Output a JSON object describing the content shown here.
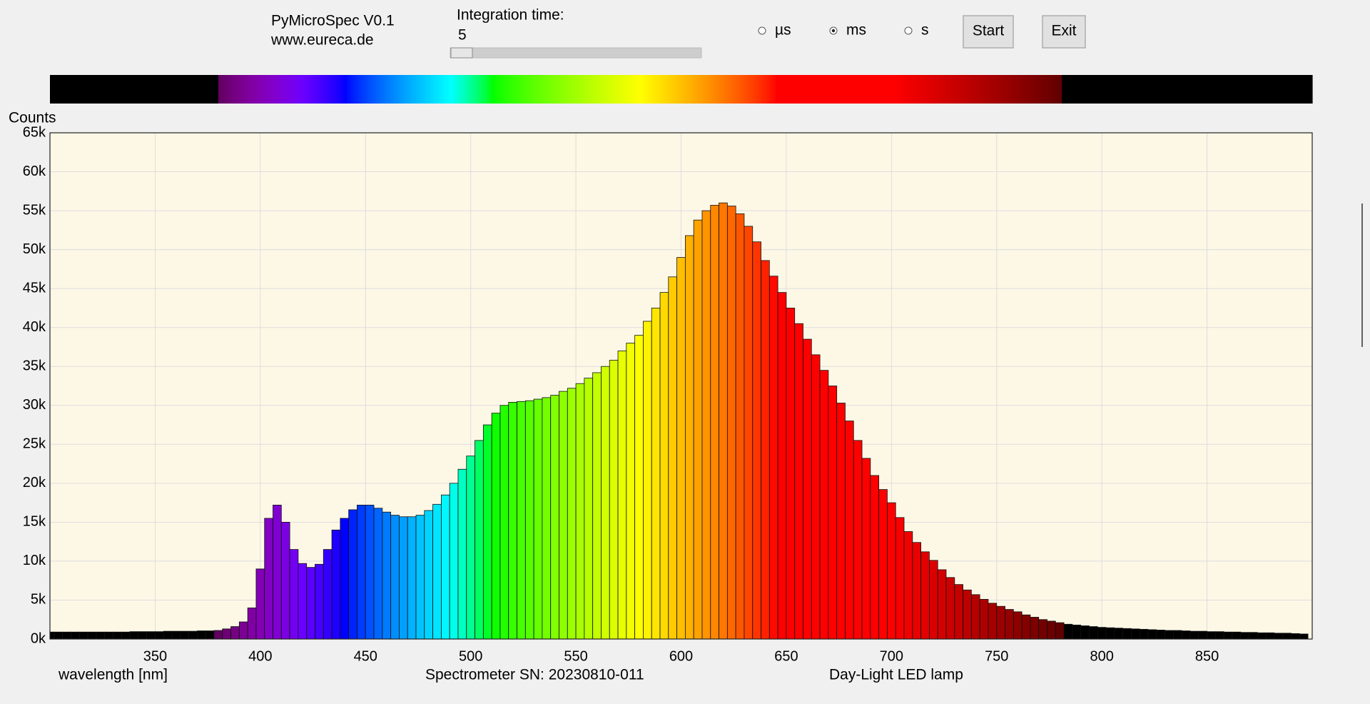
{
  "app": {
    "name": "PyMicroSpec V0.1",
    "website": "www.eureca.de"
  },
  "controls": {
    "integration_label": "Integration time:",
    "integration_value": "5",
    "units": [
      "µs",
      "ms",
      "s"
    ],
    "selected_unit": "ms",
    "start": "Start",
    "exit": "Exit"
  },
  "chart_data": {
    "type": "bar",
    "ylabel": "Counts",
    "xlabel": "wavelength [nm]",
    "annotations": [
      "Spectrometer SN: 20230810-011",
      "Day-Light LED lamp"
    ],
    "xlim": [
      300,
      900
    ],
    "xticks": [
      350,
      400,
      450,
      500,
      550,
      600,
      650,
      700,
      750,
      800,
      850
    ],
    "ylim": [
      0,
      65000
    ],
    "yticks": [
      {
        "value": 0,
        "label": "0k"
      },
      {
        "value": 5000,
        "label": "5k"
      },
      {
        "value": 10000,
        "label": "10k"
      },
      {
        "value": 15000,
        "label": "15k"
      },
      {
        "value": 20000,
        "label": "20k"
      },
      {
        "value": 25000,
        "label": "25k"
      },
      {
        "value": 30000,
        "label": "30k"
      },
      {
        "value": 35000,
        "label": "35k"
      },
      {
        "value": 40000,
        "label": "40k"
      },
      {
        "value": 45000,
        "label": "45k"
      },
      {
        "value": 50000,
        "label": "50k"
      },
      {
        "value": 55000,
        "label": "55k"
      },
      {
        "value": 60000,
        "label": "60k"
      },
      {
        "value": 65000,
        "label": "65k"
      }
    ],
    "grid": true,
    "color": "wavelength",
    "x": [
      300,
      304,
      308,
      312,
      316,
      320,
      324,
      328,
      332,
      336,
      340,
      344,
      348,
      352,
      356,
      360,
      364,
      368,
      372,
      376,
      380,
      384,
      388,
      392,
      396,
      400,
      404,
      408,
      412,
      416,
      420,
      424,
      428,
      432,
      436,
      440,
      444,
      448,
      452,
      456,
      460,
      464,
      468,
      472,
      476,
      480,
      484,
      488,
      492,
      496,
      500,
      504,
      508,
      512,
      516,
      520,
      524,
      528,
      532,
      536,
      540,
      544,
      548,
      552,
      556,
      560,
      564,
      568,
      572,
      576,
      580,
      584,
      588,
      592,
      596,
      600,
      604,
      608,
      612,
      616,
      620,
      624,
      628,
      632,
      636,
      640,
      644,
      648,
      652,
      656,
      660,
      664,
      668,
      672,
      676,
      680,
      684,
      688,
      692,
      696,
      700,
      704,
      708,
      712,
      716,
      720,
      724,
      728,
      732,
      736,
      740,
      744,
      748,
      752,
      756,
      760,
      764,
      768,
      772,
      776,
      780,
      784,
      788,
      792,
      796,
      800,
      804,
      808,
      812,
      816,
      820,
      824,
      828,
      832,
      836,
      840,
      844,
      848,
      852,
      856,
      860,
      864,
      868,
      872,
      876,
      880,
      884,
      888,
      892,
      896
    ],
    "values": [
      900,
      900,
      900,
      900,
      900,
      900,
      900,
      900,
      900,
      900,
      950,
      950,
      950,
      950,
      1000,
      1000,
      1000,
      1000,
      1050,
      1050,
      1100,
      1300,
      1600,
      2200,
      4000,
      9000,
      15500,
      17200,
      15000,
      11500,
      9700,
      9200,
      9600,
      11500,
      14000,
      15500,
      16600,
      17200,
      17200,
      16800,
      16300,
      15900,
      15700,
      15700,
      15900,
      16500,
      17300,
      18500,
      20000,
      21800,
      23500,
      25500,
      27500,
      29000,
      30000,
      30400,
      30500,
      30600,
      30800,
      31000,
      31300,
      31800,
      32200,
      32800,
      33500,
      34200,
      35000,
      35800,
      37000,
      38000,
      39000,
      40800,
      42500,
      44500,
      46500,
      49000,
      51800,
      53800,
      55000,
      55700,
      56000,
      55600,
      54600,
      53000,
      51000,
      48600,
      46600,
      44500,
      42500,
      40500,
      38500,
      36500,
      34500,
      32500,
      30300,
      28000,
      25500,
      23200,
      21000,
      19200,
      17500,
      15600,
      13800,
      12400,
      11200,
      10100,
      8900,
      7900,
      7000,
      6300,
      5700,
      5100,
      4600,
      4200,
      3800,
      3500,
      3100,
      2800,
      2500,
      2300,
      2100,
      1900,
      1800,
      1700,
      1600,
      1500,
      1450,
      1400,
      1350,
      1300,
      1250,
      1200,
      1150,
      1100,
      1100,
      1050,
      1000,
      1000,
      950,
      950,
      900,
      900,
      850,
      850,
      800,
      800,
      750,
      750,
      700,
      650
    ]
  }
}
